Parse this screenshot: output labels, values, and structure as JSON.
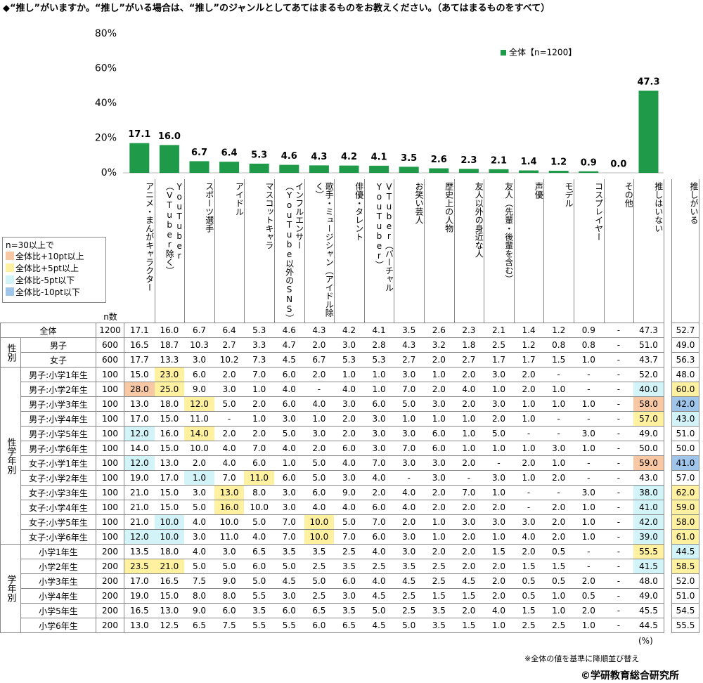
{
  "chart_data": {
    "type": "bar",
    "title": "◆“推し”がいますか。“推し”がいる場合は、“推し”のジャンルとしてあてはまるものをお教えください。（あてはまるものをすべて）",
    "categories": [
      "アニメ・まんがキャラクター",
      "YouTuber（VTuber除く）",
      "スポーツ選手",
      "アイドル",
      "マスコットキャラ",
      "インフルエンサー（YouTube以外のSNS）",
      "歌手・ミュージシャン（アイドル除く）",
      "俳優・タレント",
      "VTuber（バーチャルYouTuber）",
      "お笑い芸人",
      "歴史上の人物",
      "友人以外の身近な人",
      "友人（先輩・後輩を含む）",
      "声優",
      "モデル",
      "コスプレイヤー",
      "その他",
      "推しはいない"
    ],
    "series": [
      {
        "name": "全体【n=1200】",
        "color": "#1e9a48",
        "values": [
          17.1,
          16.0,
          6.7,
          6.4,
          5.3,
          4.6,
          4.3,
          4.2,
          4.1,
          3.5,
          2.6,
          2.3,
          2.1,
          1.4,
          1.2,
          0.9,
          0.0,
          47.3
        ],
        "value_labels": [
          "17.1",
          "16.0",
          "6.7",
          "6.4",
          "5.3",
          "4.6",
          "4.3",
          "4.2",
          "4.1",
          "3.5",
          "2.6",
          "2.3",
          "2.1",
          "1.4",
          "1.2",
          "0.9",
          "0.0",
          "47.3"
        ]
      }
    ],
    "ylim": [
      0,
      80
    ],
    "yticks": [
      {
        "value": 0,
        "label": "0%"
      },
      {
        "value": 20,
        "label": "20%"
      },
      {
        "value": 40,
        "label": "40%"
      },
      {
        "value": 60,
        "label": "60%"
      },
      {
        "value": 80,
        "label": "80%"
      }
    ],
    "grid": false,
    "legend": "top-right"
  },
  "table": {
    "n_header": "n数",
    "extra_header": "推しがいる",
    "legend": {
      "title": "n=30以上で",
      "items": [
        {
          "label": "全体比+10pt以上",
          "color": "#f8c8a4"
        },
        {
          "label": "全体比+5pt以上",
          "color": "#fff1a0"
        },
        {
          "label": "全体比-5pt以下",
          "color": "#d2f3f8"
        },
        {
          "label": "全体比-10pt以下",
          "color": "#9fc5ea"
        }
      ]
    },
    "total": {
      "label": "全体",
      "n": "1200",
      "cells": [
        "17.1",
        "16.0",
        "6.7",
        "6.4",
        "5.3",
        "4.6",
        "4.3",
        "4.2",
        "4.1",
        "3.5",
        "2.6",
        "2.3",
        "2.1",
        "1.4",
        "1.2",
        "0.9",
        "-",
        "47.3"
      ],
      "oshi": "52.7"
    },
    "sections": [
      {
        "label": "性別",
        "rows": [
          {
            "label": "男子",
            "n": "600",
            "cells": [
              "16.5",
              "18.7",
              "10.3",
              "2.7",
              "3.3",
              "4.7",
              "2.0",
              "3.0",
              "2.8",
              "4.3",
              "3.2",
              "1.8",
              "2.5",
              "1.2",
              "0.8",
              "0.8",
              "-",
              "51.0"
            ],
            "oshi": "49.0"
          },
          {
            "label": "女子",
            "n": "600",
            "cells": [
              "17.7",
              "13.3",
              "3.0",
              "10.2",
              "7.3",
              "4.5",
              "6.7",
              "5.3",
              "5.3",
              "2.7",
              "2.0",
              "2.7",
              "1.7",
              "1.7",
              "1.5",
              "1.0",
              "-",
              "43.7"
            ],
            "oshi": "56.3"
          }
        ]
      },
      {
        "label": "性学年別",
        "rows": [
          {
            "label": "男子:小学1年生",
            "n": "100",
            "cells": [
              "15.0",
              "23.0",
              "6.0",
              "2.0",
              "7.0",
              "6.0",
              "2.0",
              "1.0",
              "1.0",
              "3.0",
              "1.0",
              "2.0",
              "3.0",
              "2.0",
              "-",
              "-",
              "-",
              "52.0"
            ],
            "oshi": "48.0",
            "hl": {
              "1": 1
            }
          },
          {
            "label": "男子:小学2年生",
            "n": "100",
            "cells": [
              "28.0",
              "25.0",
              "9.0",
              "3.0",
              "1.0",
              "4.0",
              "-",
              "4.0",
              "1.0",
              "7.0",
              "2.0",
              "4.0",
              "1.0",
              "2.0",
              "1.0",
              "-",
              "-",
              "40.0"
            ],
            "oshi": "60.0",
            "hl": {
              "0": 0,
              "1": 1,
              "17": 2,
              "18": 1
            }
          },
          {
            "label": "男子:小学3年生",
            "n": "100",
            "cells": [
              "13.0",
              "18.0",
              "12.0",
              "5.0",
              "2.0",
              "6.0",
              "4.0",
              "3.0",
              "6.0",
              "5.0",
              "3.0",
              "2.0",
              "3.0",
              "1.0",
              "1.0",
              "1.0",
              "-",
              "58.0"
            ],
            "oshi": "42.0",
            "hl": {
              "2": 1,
              "17": 0,
              "18": 3
            }
          },
          {
            "label": "男子:小学4年生",
            "n": "100",
            "cells": [
              "17.0",
              "15.0",
              "11.0",
              "-",
              "1.0",
              "3.0",
              "1.0",
              "2.0",
              "3.0",
              "1.0",
              "1.0",
              "1.0",
              "2.0",
              "1.0",
              "-",
              "-",
              "-",
              "57.0"
            ],
            "oshi": "43.0",
            "hl": {
              "17": 1,
              "18": 2
            }
          },
          {
            "label": "男子:小学5年生",
            "n": "100",
            "cells": [
              "12.0",
              "16.0",
              "14.0",
              "2.0",
              "2.0",
              "5.0",
              "3.0",
              "2.0",
              "3.0",
              "3.0",
              "6.0",
              "1.0",
              "5.0",
              "-",
              "-",
              "3.0",
              "-",
              "49.0"
            ],
            "oshi": "51.0",
            "hl": {
              "0": 2,
              "2": 1
            }
          },
          {
            "label": "男子:小学6年生",
            "n": "100",
            "cells": [
              "14.0",
              "15.0",
              "10.0",
              "4.0",
              "7.0",
              "4.0",
              "2.0",
              "6.0",
              "3.0",
              "7.0",
              "6.0",
              "1.0",
              "1.0",
              "1.0",
              "3.0",
              "1.0",
              "-",
              "50.0"
            ],
            "oshi": "50.0"
          },
          {
            "label": "女子:小学1年生",
            "n": "100",
            "cells": [
              "12.0",
              "13.0",
              "2.0",
              "4.0",
              "6.0",
              "1.0",
              "5.0",
              "4.0",
              "7.0",
              "3.0",
              "3.0",
              "2.0",
              "-",
              "2.0",
              "1.0",
              "-",
              "-",
              "59.0"
            ],
            "oshi": "41.0",
            "hl": {
              "0": 2,
              "17": 0,
              "18": 3
            }
          },
          {
            "label": "女子:小学2年生",
            "n": "100",
            "cells": [
              "19.0",
              "17.0",
              "1.0",
              "7.0",
              "11.0",
              "6.0",
              "5.0",
              "3.0",
              "4.0",
              "-",
              "3.0",
              "-",
              "3.0",
              "1.0",
              "2.0",
              "-",
              "-",
              "43.0"
            ],
            "oshi": "57.0",
            "hl": {
              "2": 2,
              "4": 1
            }
          },
          {
            "label": "女子:小学3年生",
            "n": "100",
            "cells": [
              "21.0",
              "15.0",
              "3.0",
              "13.0",
              "8.0",
              "3.0",
              "6.0",
              "9.0",
              "2.0",
              "4.0",
              "2.0",
              "7.0",
              "1.0",
              "-",
              "-",
              "3.0",
              "-",
              "38.0"
            ],
            "oshi": "62.0",
            "hl": {
              "3": 1,
              "17": 2,
              "18": 1
            }
          },
          {
            "label": "女子:小学4年生",
            "n": "100",
            "cells": [
              "21.0",
              "15.0",
              "5.0",
              "16.0",
              "10.0",
              "3.0",
              "4.0",
              "4.0",
              "6.0",
              "4.0",
              "2.0",
              "2.0",
              "2.0",
              "-",
              "2.0",
              "1.0",
              "-",
              "41.0"
            ],
            "oshi": "59.0",
            "hl": {
              "3": 1,
              "17": 2,
              "18": 1
            }
          },
          {
            "label": "女子:小学5年生",
            "n": "100",
            "cells": [
              "21.0",
              "10.0",
              "4.0",
              "10.0",
              "5.0",
              "7.0",
              "10.0",
              "5.0",
              "7.0",
              "2.0",
              "1.0",
              "3.0",
              "3.0",
              "3.0",
              "2.0",
              "1.0",
              "-",
              "42.0"
            ],
            "oshi": "58.0",
            "hl": {
              "1": 2,
              "6": 1,
              "17": 2,
              "18": 1
            }
          },
          {
            "label": "女子:小学6年生",
            "n": "100",
            "cells": [
              "12.0",
              "10.0",
              "3.0",
              "11.0",
              "4.0",
              "7.0",
              "10.0",
              "7.0",
              "6.0",
              "3.0",
              "1.0",
              "2.0",
              "1.0",
              "4.0",
              "2.0",
              "1.0",
              "-",
              "39.0"
            ],
            "oshi": "61.0",
            "hl": {
              "0": 2,
              "1": 2,
              "6": 1,
              "17": 2,
              "18": 1
            }
          }
        ]
      },
      {
        "label": "学年別",
        "rows": [
          {
            "label": "小学1年生",
            "n": "200",
            "cells": [
              "13.5",
              "18.0",
              "4.0",
              "3.0",
              "6.5",
              "3.5",
              "3.5",
              "2.5",
              "4.0",
              "3.0",
              "2.0",
              "2.0",
              "1.5",
              "2.0",
              "0.5",
              "-",
              "-",
              "55.5"
            ],
            "oshi": "44.5",
            "hl": {
              "17": 1,
              "18": 2
            }
          },
          {
            "label": "小学2年生",
            "n": "200",
            "cells": [
              "23.5",
              "21.0",
              "5.0",
              "5.0",
              "6.0",
              "5.0",
              "2.5",
              "3.5",
              "2.5",
              "3.5",
              "2.5",
              "2.0",
              "2.0",
              "1.5",
              "1.5",
              "-",
              "-",
              "41.5"
            ],
            "oshi": "58.5",
            "hl": {
              "0": 1,
              "1": 1,
              "17": 2,
              "18": 1
            }
          },
          {
            "label": "小学3年生",
            "n": "200",
            "cells": [
              "17.0",
              "16.5",
              "7.5",
              "9.0",
              "5.0",
              "4.5",
              "5.0",
              "6.0",
              "4.0",
              "4.5",
              "2.5",
              "4.5",
              "2.0",
              "0.5",
              "0.5",
              "2.0",
              "-",
              "48.0"
            ],
            "oshi": "52.0"
          },
          {
            "label": "小学4年生",
            "n": "200",
            "cells": [
              "19.0",
              "15.0",
              "8.0",
              "8.0",
              "5.5",
              "3.0",
              "2.5",
              "3.0",
              "4.5",
              "2.5",
              "1.5",
              "1.5",
              "2.0",
              "0.5",
              "1.0",
              "0.5",
              "-",
              "49.0"
            ],
            "oshi": "51.0"
          },
          {
            "label": "小学5年生",
            "n": "200",
            "cells": [
              "16.5",
              "13.0",
              "9.0",
              "6.0",
              "3.5",
              "6.0",
              "6.5",
              "3.5",
              "5.0",
              "2.5",
              "3.5",
              "2.0",
              "4.0",
              "1.5",
              "1.0",
              "2.0",
              "-",
              "45.5"
            ],
            "oshi": "54.5"
          },
          {
            "label": "小学6年生",
            "n": "200",
            "cells": [
              "13.0",
              "12.5",
              "6.5",
              "7.5",
              "5.5",
              "5.5",
              "6.0",
              "6.5",
              "4.5",
              "5.0",
              "3.5",
              "1.5",
              "1.0",
              "2.5",
              "2.5",
              "1.0",
              "-",
              "44.5"
            ],
            "oshi": "55.5"
          }
        ]
      }
    ]
  },
  "notes": {
    "unit": "(%)",
    "sort_note": "※全体の値を基準に降順並び替え",
    "copyright": "©学研教育総合研究所"
  }
}
